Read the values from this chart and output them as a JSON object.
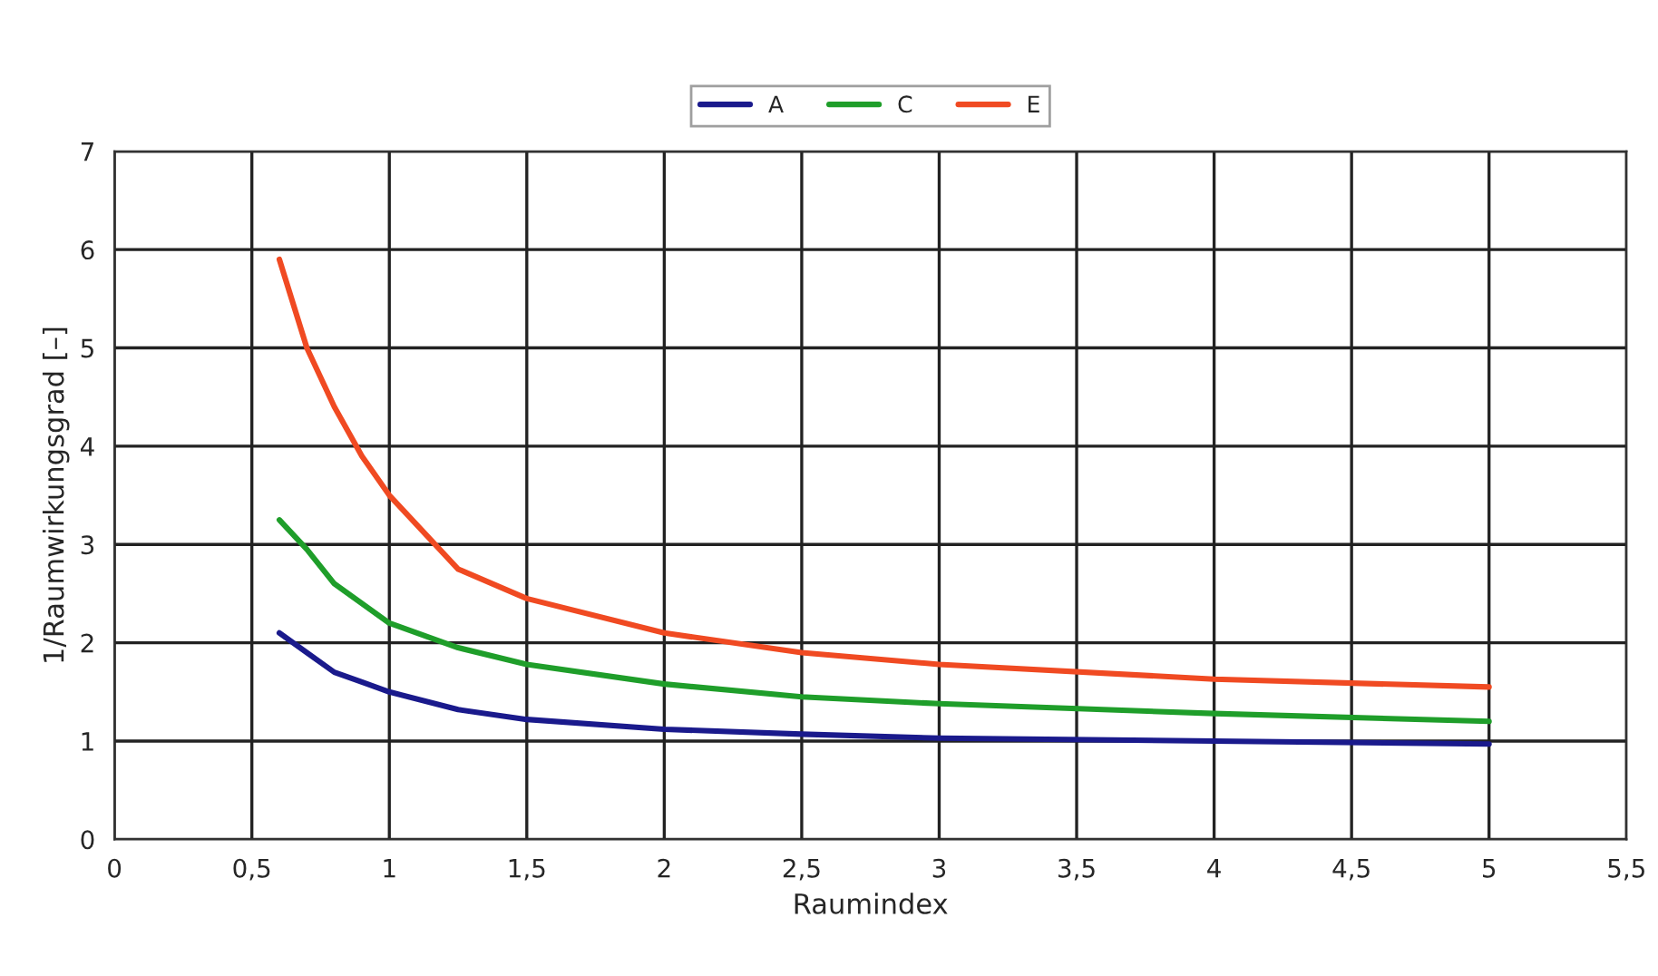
{
  "chart_data": {
    "type": "line",
    "xlabel": "Raumindex",
    "ylabel": "1/Raumwirkungsgrad [–]",
    "x": [
      0.6,
      0.7,
      0.8,
      0.9,
      1,
      1.25,
      1.5,
      2,
      2.5,
      3,
      4,
      5
    ],
    "series": [
      {
        "name": "A",
        "color": "#1a1a8c",
        "values": [
          2.1,
          1.9,
          1.7,
          1.6,
          1.5,
          1.32,
          1.22,
          1.12,
          1.07,
          1.03,
          1.0,
          0.97
        ]
      },
      {
        "name": "C",
        "color": "#1f9e2a",
        "values": [
          3.25,
          2.95,
          2.6,
          2.4,
          2.2,
          1.95,
          1.78,
          1.58,
          1.45,
          1.38,
          1.28,
          1.2
        ]
      },
      {
        "name": "E",
        "color": "#f04a22",
        "values": [
          5.9,
          5.0,
          4.4,
          3.9,
          3.5,
          2.75,
          2.45,
          2.1,
          1.9,
          1.78,
          1.63,
          1.55
        ]
      }
    ],
    "xlim": [
      0,
      5.5
    ],
    "xticks": [
      0,
      {
        "value": 0.5,
        "label": "0,5"
      },
      1,
      {
        "value": 1.5,
        "label": "1,5"
      },
      2,
      {
        "value": 2.5,
        "label": "2,5"
      },
      3,
      {
        "value": 3.5,
        "label": "3,5"
      },
      4,
      {
        "value": 4.5,
        "label": "4,5"
      },
      5,
      {
        "value": 5.5,
        "label": "5,5"
      }
    ],
    "ylim": [
      0,
      7
    ],
    "yticks": [
      0,
      1,
      2,
      3,
      4,
      5,
      6,
      7
    ],
    "grid": true,
    "legend": "top",
    "marker": "none",
    "line_style": "solid"
  }
}
